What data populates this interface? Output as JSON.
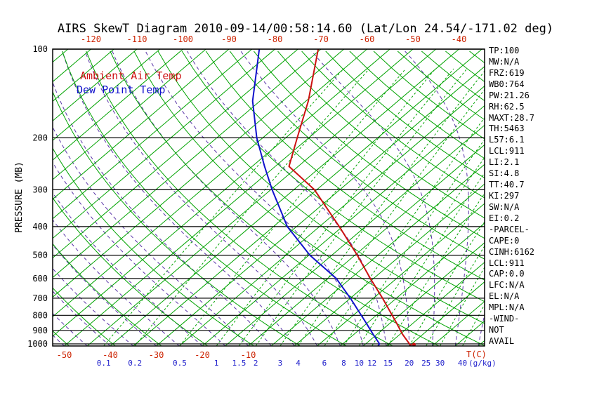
{
  "window": {
    "title": "AIRS SkewT Diagram 2010-09-14/00:58:14.60 (Lat/Lon 24.54/-171.02 deg)"
  },
  "legend": {
    "temp": "Ambient Air Temp",
    "dew": "Dew Point Temp"
  },
  "axes": {
    "ylabel": "PRESSURE (MB)",
    "temp_unit_label": "T(C)",
    "mix_unit_label": "(g/kg)",
    "pressure_ticks": [
      100,
      200,
      300,
      400,
      500,
      600,
      700,
      800,
      900,
      1000
    ],
    "top_temp_ticks": [
      -120,
      -110,
      -100,
      -90,
      -80,
      -70,
      -60,
      -50,
      -40
    ],
    "bottom_temp_ticks": [
      -50,
      -40,
      -30,
      -20,
      -10
    ]
  },
  "stats": [
    "TP:100",
    "MW:N/A",
    "FRZ:619",
    "WB0:764",
    "PW:21.26",
    "RH:62.5",
    "MAXT:28.7",
    "TH:5463",
    "L57:6.1",
    "LCL:911",
    "LI:2.1",
    "SI:4.8",
    "TT:40.7",
    "KI:297",
    "SW:N/A",
    "EI:0.2",
    "-PARCEL-",
    "CAPE:0",
    "CINH:6162",
    "LCL:911",
    "CAP:0.0",
    "LFC:N/A",
    "EL:N/A",
    "MPL:N/A",
    "-WIND-",
    "NOT",
    "AVAIL"
  ],
  "colors": {
    "background": "#ffffff",
    "grid_green": "#00a300",
    "moist_purple": "#5a35a8",
    "pressure_black": "#000000",
    "temp_red": "#cc1111",
    "dew_blue": "#1111cc",
    "axis_red": "#cc2200",
    "mix_blue": "#2222cc",
    "text_black": "#000000"
  },
  "chart_data": {
    "type": "line",
    "title": "AIRS SkewT Diagram 2010-09-14/00:58:14.60 (Lat/Lon 24.54/-171.02 deg)",
    "xlabel": "T(C)",
    "ylabel": "PRESSURE (MB)",
    "y_scale": "log",
    "pressure_range": [
      100,
      1016
    ],
    "surface_temp_range": [
      -50,
      40
    ],
    "isotherms": {
      "min": -135,
      "max": 45,
      "step": 5
    },
    "dry_adiabats": {
      "theta_min": -50,
      "theta_max": 200,
      "step": 10
    },
    "moist_adiabats": {
      "thetaw_min": -50,
      "thetaw_max": 40,
      "step": 5
    },
    "mixing_ratios": [
      0.1,
      0.2,
      0.5,
      1,
      1.5,
      2,
      3,
      4,
      6,
      8,
      10,
      12,
      15,
      20,
      25,
      30,
      40
    ],
    "series": [
      {
        "name": "Ambient Air Temp",
        "color": "#cc1111",
        "points": [
          [
            1016,
            25.5
          ],
          [
            1000,
            24.5
          ],
          [
            925,
            20.4
          ],
          [
            850,
            16.4
          ],
          [
            700,
            7
          ],
          [
            600,
            -0.7
          ],
          [
            500,
            -9.5
          ],
          [
            400,
            -20.7
          ],
          [
            300,
            -35.5
          ],
          [
            250,
            -47
          ],
          [
            200,
            -52.5
          ],
          [
            150,
            -59.5
          ],
          [
            100,
            -70.6
          ]
        ]
      },
      {
        "name": "Dew Point Temp",
        "color": "#1111cc",
        "points": [
          [
            1016,
            18.2
          ],
          [
            1000,
            18
          ],
          [
            925,
            14
          ],
          [
            850,
            9.8
          ],
          [
            700,
            0
          ],
          [
            600,
            -8.1
          ],
          [
            500,
            -19.8
          ],
          [
            400,
            -32
          ],
          [
            300,
            -44.7
          ],
          [
            250,
            -52.3
          ],
          [
            200,
            -61.3
          ],
          [
            150,
            -71.6
          ],
          [
            100,
            -83.4
          ]
        ]
      }
    ],
    "surface_marker": {
      "p": 1016,
      "t": 26
    },
    "indices": {
      "TP": "100",
      "MW": "N/A",
      "FRZ": "619",
      "WB0": "764",
      "PW": "21.26",
      "RH": "62.5",
      "MAXT": "28.7",
      "TH": "5463",
      "L57": "6.1",
      "LCL": "911",
      "LI": "2.1",
      "SI": "4.8",
      "TT": "40.7",
      "KI": "297",
      "SW": "N/A",
      "EI": "0.2",
      "CAPE": "0",
      "CINH": "6162",
      "LCL_parcel": "911",
      "CAP": "0.0",
      "LFC": "N/A",
      "EL": "N/A",
      "MPL": "N/A",
      "WIND": "NOT AVAIL"
    }
  }
}
